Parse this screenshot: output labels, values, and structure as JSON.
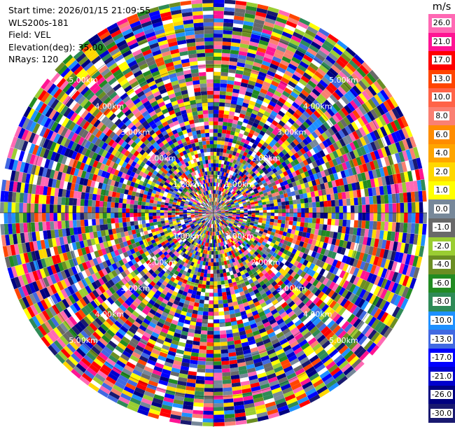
{
  "info": {
    "start_time": "Start time: 2026/01/15 21:09:55",
    "instrument": "WLS200s-181",
    "field": "Field: VEL",
    "elevation": "Elevation(deg): 35.00",
    "nrays": "NRays: 120"
  },
  "chart_data": {
    "type": "heatmap",
    "projection": "polar-ppi",
    "field": "VEL",
    "unit": "m/s",
    "n_rays": 120,
    "elevation_deg": 35.0,
    "range_rings_km": [
      1.0,
      2.0,
      3.0,
      4.0,
      5.0
    ],
    "range_ring_labels": [
      "1.00km",
      "2.00km",
      "3.00km",
      "4.00km",
      "5.00km"
    ],
    "max_range_km": 5.8,
    "colorbar": {
      "unit": "m/s",
      "levels": [
        {
          "label": "26.0",
          "color": "#ff69b4"
        },
        {
          "label": "21.0",
          "color": "#ff1493"
        },
        {
          "label": "17.0",
          "color": "#ff0000"
        },
        {
          "label": "13.0",
          "color": "#ff4500"
        },
        {
          "label": "10.0",
          "color": "#ff6347"
        },
        {
          "label": "8.0",
          "color": "#fa8072"
        },
        {
          "label": "6.0",
          "color": "#ff8c00"
        },
        {
          "label": "4.0",
          "color": "#ffa500"
        },
        {
          "label": "2.0",
          "color": "#ffd700"
        },
        {
          "label": "1.0",
          "color": "#ffff00"
        },
        {
          "label": "0.0",
          "color": "#778899"
        },
        {
          "label": "-1.0",
          "color": "#696969"
        },
        {
          "label": "-2.0",
          "color": "#9acd32"
        },
        {
          "label": "-4.0",
          "color": "#6b8e23"
        },
        {
          "label": "-6.0",
          "color": "#228b22"
        },
        {
          "label": "-8.0",
          "color": "#2e8b57"
        },
        {
          "label": "-10.0",
          "color": "#1e90ff"
        },
        {
          "label": "-13.0",
          "color": "#4169e1"
        },
        {
          "label": "-17.0",
          "color": "#0000ff"
        },
        {
          "label": "-21.0",
          "color": "#0000cd"
        },
        {
          "label": "-26.0",
          "color": "#000080"
        },
        {
          "label": "-30.0",
          "color": "#191970"
        }
      ]
    }
  }
}
